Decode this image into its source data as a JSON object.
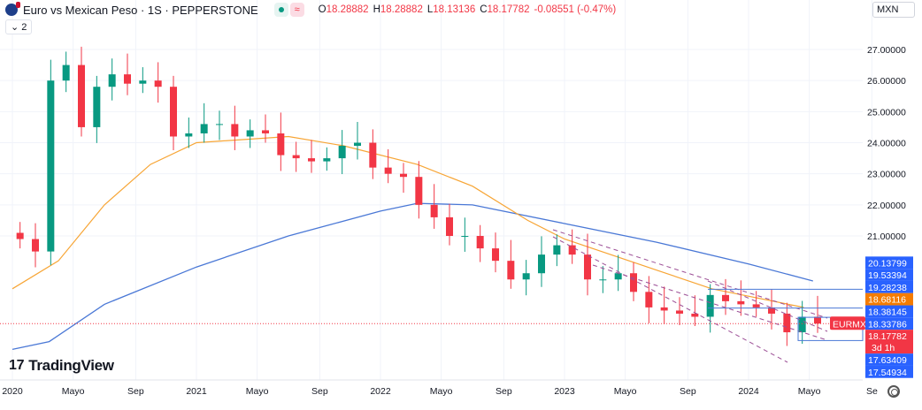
{
  "header": {
    "title": "Euro vs Mexican Peso · 1S · PEPPERSTONE",
    "open_label": "O",
    "open": "18.28882",
    "high_label": "H",
    "high": "18.28882",
    "low_label": "L",
    "low": "18.13136",
    "close_label": "C",
    "close": "18.17782",
    "change": "-0.08551 (-0.47%)",
    "collapse": "2",
    "currency": "MXN",
    "status_icons": [
      "market-open-dot",
      "delayed-data-wave"
    ]
  },
  "branding": {
    "logo": "TradingView"
  },
  "colors": {
    "up": "#089981",
    "down": "#f23645",
    "ma_fast": "#f7a535",
    "ma_slow": "#4a78d6",
    "drawing": "#9c4f96",
    "axis_badge": "#2962ff",
    "price_badge": "#f23645",
    "orange_badge": "#f57c00"
  },
  "chart_data": {
    "type": "candlestick",
    "x_unit": "month (Jan 2020 onward)",
    "ylim": [
      17.2,
      27.9
    ],
    "y_ticks": [
      "27.00000",
      "26.00000",
      "25.00000",
      "24.00000",
      "23.00000",
      "22.00000",
      "21.00000"
    ],
    "x_ticks": [
      {
        "label": "2020",
        "t": 2020.0
      },
      {
        "label": "Mayo",
        "t": 2020.33
      },
      {
        "label": "Sep",
        "t": 2020.67
      },
      {
        "label": "2021",
        "t": 2021.0
      },
      {
        "label": "Mayo",
        "t": 2021.33
      },
      {
        "label": "Sep",
        "t": 2021.67
      },
      {
        "label": "2022",
        "t": 2022.0
      },
      {
        "label": "Mayo",
        "t": 2022.33
      },
      {
        "label": "Sep",
        "t": 2022.67
      },
      {
        "label": "2023",
        "t": 2023.0
      },
      {
        "label": "Mayo",
        "t": 2023.33
      },
      {
        "label": "Sep",
        "t": 2023.67
      },
      {
        "label": "2024",
        "t": 2024.0
      },
      {
        "label": "Mayo",
        "t": 2024.33
      },
      {
        "label": "Se",
        "t": 2024.67
      }
    ],
    "closes": [
      20.9,
      20.5,
      26.0,
      26.5,
      24.5,
      25.8,
      26.2,
      25.9,
      26.0,
      25.8,
      24.2,
      24.3,
      24.6,
      24.6,
      24.2,
      24.4,
      24.3,
      23.6,
      23.5,
      23.4,
      23.5,
      23.9,
      24.0,
      23.2,
      23.0,
      22.9,
      22.0,
      21.6,
      21.0,
      21.0,
      20.6,
      20.2,
      19.6,
      19.8,
      20.4,
      20.7,
      20.4,
      19.6,
      19.6,
      19.8,
      19.2,
      18.7,
      18.6,
      18.5,
      18.4,
      19.1,
      18.9,
      18.8,
      18.7,
      18.5,
      17.9,
      18.4,
      18.18
    ],
    "ma_fast": [
      [
        2020.0,
        19.3
      ],
      [
        2020.25,
        20.2
      ],
      [
        2020.5,
        22.0
      ],
      [
        2020.75,
        23.3
      ],
      [
        2021.0,
        24.0
      ],
      [
        2021.5,
        24.2
      ],
      [
        2021.8,
        23.9
      ],
      [
        2022.2,
        23.3
      ],
      [
        2022.5,
        22.6
      ],
      [
        2022.8,
        21.5
      ],
      [
        2023.0,
        20.9
      ],
      [
        2023.5,
        19.9
      ],
      [
        2023.8,
        19.3
      ],
      [
        2024.3,
        18.7
      ]
    ],
    "ma_slow": [
      [
        2020.0,
        17.35
      ],
      [
        2020.2,
        17.6
      ],
      [
        2020.5,
        18.8
      ],
      [
        2021.0,
        20.0
      ],
      [
        2021.5,
        21.0
      ],
      [
        2022.0,
        21.8
      ],
      [
        2022.2,
        22.05
      ],
      [
        2022.5,
        22.0
      ],
      [
        2023.0,
        21.4
      ],
      [
        2023.5,
        20.8
      ],
      [
        2024.0,
        20.1
      ],
      [
        2024.35,
        19.55
      ]
    ],
    "last_price": 18.17782,
    "price_badges": [
      {
        "v": 20.13799,
        "label": "20.13799",
        "c": "#2962ff"
      },
      {
        "v": 19.53394,
        "label": "19.53394",
        "c": "#2962ff"
      },
      {
        "v": 19.28238,
        "label": "19.28238",
        "c": "#2962ff"
      },
      {
        "v": 18.68116,
        "label": "18.68116",
        "c": "#f57c00"
      },
      {
        "v": 18.38145,
        "label": "18.38145",
        "c": "#2962ff"
      },
      {
        "v": 18.33786,
        "label": "18.33786",
        "c": "#2962ff"
      },
      {
        "v": 18.17782,
        "label": "18.17782",
        "c": "#f23645",
        "sub": "3d 1h"
      },
      {
        "v": 17.63409,
        "label": "17.63409",
        "c": "#2962ff"
      },
      {
        "v": 17.54934,
        "label": "17.54934",
        "c": "#2962ff"
      }
    ],
    "symbol_label": "EURMXN"
  }
}
